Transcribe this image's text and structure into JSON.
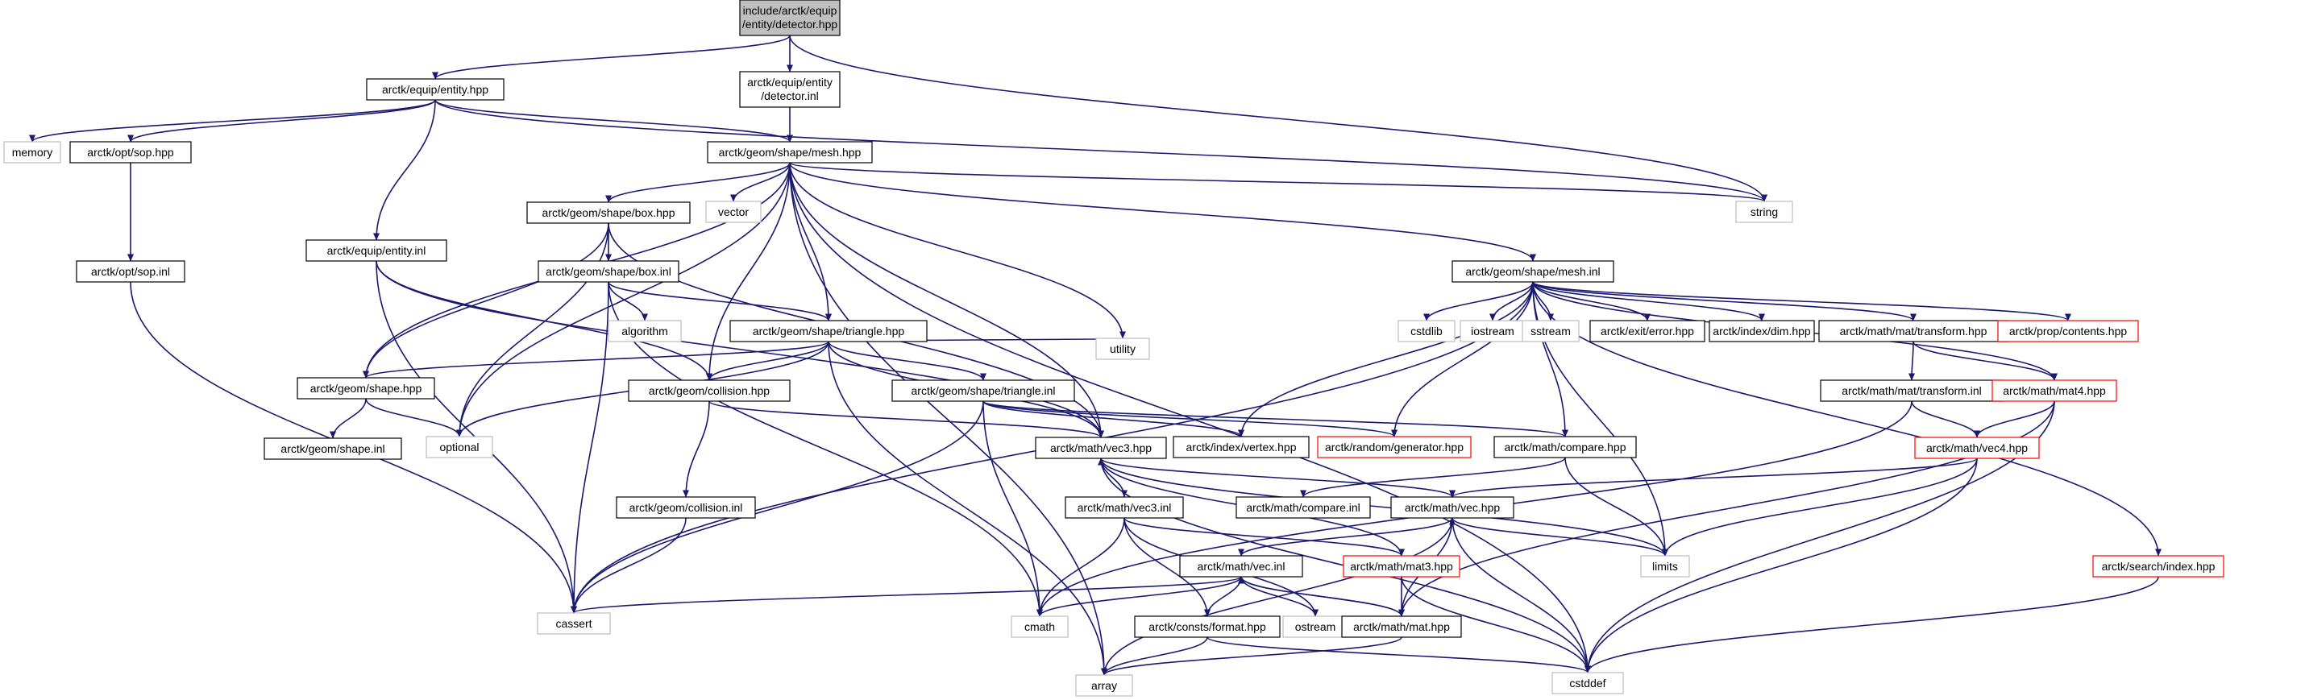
{
  "graph": {
    "root": "n0",
    "nodes": [
      {
        "id": "n0",
        "lines": [
          "include/arctk/equip",
          "/entity/detector.hpp"
        ],
        "style": "root"
      },
      {
        "id": "n1",
        "lines": [
          "arctk/equip/entity.hpp"
        ],
        "style": "normal"
      },
      {
        "id": "n2",
        "lines": [
          "arctk/equip/entity",
          "/detector.inl"
        ],
        "style": "normal"
      },
      {
        "id": "n3",
        "lines": [
          "string"
        ],
        "style": "external"
      },
      {
        "id": "n4",
        "lines": [
          "memory"
        ],
        "style": "external"
      },
      {
        "id": "n5",
        "lines": [
          "arctk/opt/sop.hpp"
        ],
        "style": "normal"
      },
      {
        "id": "n6",
        "lines": [
          "arctk/geom/shape/mesh.hpp"
        ],
        "style": "normal"
      },
      {
        "id": "n7",
        "lines": [
          "arctk/equip/entity.inl"
        ],
        "style": "normal"
      },
      {
        "id": "n8",
        "lines": [
          "arctk/opt/sop.inl"
        ],
        "style": "normal"
      },
      {
        "id": "n9",
        "lines": [
          "cassert"
        ],
        "style": "external"
      },
      {
        "id": "n10",
        "lines": [
          "arctk/geom/shape/box.hpp"
        ],
        "style": "normal"
      },
      {
        "id": "n11",
        "lines": [
          "vector"
        ],
        "style": "external"
      },
      {
        "id": "n12",
        "lines": [
          "arctk/geom/shape/mesh.inl"
        ],
        "style": "normal"
      },
      {
        "id": "n13",
        "lines": [
          "cstddef"
        ],
        "style": "external"
      },
      {
        "id": "n14",
        "lines": [
          "arctk/geom/shape/box.inl"
        ],
        "style": "normal"
      },
      {
        "id": "n15",
        "lines": [
          "algorithm"
        ],
        "style": "external"
      },
      {
        "id": "n16",
        "lines": [
          "arctk/geom/shape/triangle.hpp"
        ],
        "style": "normal"
      },
      {
        "id": "n17",
        "lines": [
          "utility"
        ],
        "style": "external"
      },
      {
        "id": "n18",
        "lines": [
          "arctk/geom/shape.hpp"
        ],
        "style": "normal"
      },
      {
        "id": "n19",
        "lines": [
          "arctk/geom/collision.hpp"
        ],
        "style": "normal"
      },
      {
        "id": "n20",
        "lines": [
          "arctk/geom/shape/triangle.inl"
        ],
        "style": "normal"
      },
      {
        "id": "n21",
        "lines": [
          "optional"
        ],
        "style": "external"
      },
      {
        "id": "n22",
        "lines": [
          "arctk/geom/shape.inl"
        ],
        "style": "normal"
      },
      {
        "id": "n23",
        "lines": [
          "arctk/math/vec3.hpp"
        ],
        "style": "normal"
      },
      {
        "id": "n24",
        "lines": [
          "arctk/index/vertex.hpp"
        ],
        "style": "normal"
      },
      {
        "id": "n25",
        "lines": [
          "arctk/random/generator.hpp"
        ],
        "style": "truncated"
      },
      {
        "id": "n26",
        "lines": [
          "arctk/math/compare.hpp"
        ],
        "style": "normal"
      },
      {
        "id": "n27",
        "lines": [
          "cstdlib"
        ],
        "style": "external"
      },
      {
        "id": "n28",
        "lines": [
          "iostream"
        ],
        "style": "external"
      },
      {
        "id": "n29",
        "lines": [
          "sstream"
        ],
        "style": "external"
      },
      {
        "id": "n30",
        "lines": [
          "arctk/exit/error.hpp"
        ],
        "style": "normal"
      },
      {
        "id": "n31",
        "lines": [
          "arctk/index/dim.hpp"
        ],
        "style": "normal"
      },
      {
        "id": "n32",
        "lines": [
          "arctk/math/mat/transform.hpp"
        ],
        "style": "normal"
      },
      {
        "id": "n33",
        "lines": [
          "arctk/prop/contents.hpp"
        ],
        "style": "truncated"
      },
      {
        "id": "n34",
        "lines": [
          "arctk/math/mat/transform.inl"
        ],
        "style": "normal"
      },
      {
        "id": "n35",
        "lines": [
          "arctk/math/mat4.hpp"
        ],
        "style": "truncated"
      },
      {
        "id": "n36",
        "lines": [
          "arctk/math/vec4.hpp"
        ],
        "style": "truncated"
      },
      {
        "id": "n37",
        "lines": [
          "arctk/geom/collision.inl"
        ],
        "style": "normal"
      },
      {
        "id": "n38",
        "lines": [
          "arctk/math/vec3.inl"
        ],
        "style": "normal"
      },
      {
        "id": "n39",
        "lines": [
          "arctk/math/compare.inl"
        ],
        "style": "normal"
      },
      {
        "id": "n40",
        "lines": [
          "arctk/math/vec.hpp"
        ],
        "style": "normal"
      },
      {
        "id": "n41",
        "lines": [
          "limits"
        ],
        "style": "external"
      },
      {
        "id": "n42",
        "lines": [
          "arctk/math/vec.inl"
        ],
        "style": "normal"
      },
      {
        "id": "n43",
        "lines": [
          "arctk/math/mat3.hpp"
        ],
        "style": "truncated"
      },
      {
        "id": "n44",
        "lines": [
          "arctk/search/index.hpp"
        ],
        "style": "truncated"
      },
      {
        "id": "n45",
        "lines": [
          "cmath"
        ],
        "style": "external"
      },
      {
        "id": "n46",
        "lines": [
          "ostream"
        ],
        "style": "external"
      },
      {
        "id": "n47",
        "lines": [
          "arctk/consts/format.hpp"
        ],
        "style": "normal"
      },
      {
        "id": "n48",
        "lines": [
          "arctk/math/mat.hpp"
        ],
        "style": "normal"
      },
      {
        "id": "n49",
        "lines": [
          "array"
        ],
        "style": "external"
      }
    ],
    "edges": [
      [
        "n0",
        "n1"
      ],
      [
        "n0",
        "n2"
      ],
      [
        "n0",
        "n3"
      ],
      [
        "n1",
        "n4"
      ],
      [
        "n1",
        "n5"
      ],
      [
        "n1",
        "n6"
      ],
      [
        "n1",
        "n7"
      ],
      [
        "n1",
        "n3"
      ],
      [
        "n2",
        "n6"
      ],
      [
        "n5",
        "n8"
      ],
      [
        "n8",
        "n9"
      ],
      [
        "n6",
        "n10"
      ],
      [
        "n6",
        "n11"
      ],
      [
        "n6",
        "n12"
      ],
      [
        "n6",
        "n3"
      ],
      [
        "n6",
        "n13"
      ],
      [
        "n6",
        "n16"
      ],
      [
        "n6",
        "n18"
      ],
      [
        "n6",
        "n19"
      ],
      [
        "n6",
        "n17"
      ],
      [
        "n6",
        "n23"
      ],
      [
        "n6",
        "n21"
      ],
      [
        "n6",
        "n49"
      ],
      [
        "n10",
        "n14"
      ],
      [
        "n10",
        "n18"
      ],
      [
        "n10",
        "n21"
      ],
      [
        "n10",
        "n23"
      ],
      [
        "n14",
        "n15"
      ],
      [
        "n14",
        "n16"
      ],
      [
        "n14",
        "n9"
      ],
      [
        "n14",
        "n45"
      ],
      [
        "n16",
        "n18"
      ],
      [
        "n16",
        "n19"
      ],
      [
        "n16",
        "n20"
      ],
      [
        "n16",
        "n17"
      ],
      [
        "n16",
        "n23"
      ],
      [
        "n16",
        "n21"
      ],
      [
        "n16",
        "n49"
      ],
      [
        "n7",
        "n19"
      ],
      [
        "n7",
        "n23"
      ],
      [
        "n7",
        "n9"
      ],
      [
        "n18",
        "n22"
      ],
      [
        "n18",
        "n21"
      ],
      [
        "n19",
        "n37"
      ],
      [
        "n19",
        "n23"
      ],
      [
        "n37",
        "n9"
      ],
      [
        "n20",
        "n24"
      ],
      [
        "n20",
        "n25"
      ],
      [
        "n20",
        "n26"
      ],
      [
        "n20",
        "n45"
      ],
      [
        "n20",
        "n9"
      ],
      [
        "n12",
        "n9"
      ],
      [
        "n12",
        "n27"
      ],
      [
        "n12",
        "n28"
      ],
      [
        "n12",
        "n29"
      ],
      [
        "n12",
        "n30"
      ],
      [
        "n12",
        "n31"
      ],
      [
        "n12",
        "n32"
      ],
      [
        "n12",
        "n33"
      ],
      [
        "n12",
        "n35"
      ],
      [
        "n12",
        "n44"
      ],
      [
        "n12",
        "n24"
      ],
      [
        "n12",
        "n25"
      ],
      [
        "n12",
        "n26"
      ],
      [
        "n12",
        "n41"
      ],
      [
        "n32",
        "n34"
      ],
      [
        "n32",
        "n35"
      ],
      [
        "n34",
        "n36"
      ],
      [
        "n34",
        "n45"
      ],
      [
        "n35",
        "n36"
      ],
      [
        "n35",
        "n48"
      ],
      [
        "n35",
        "n13"
      ],
      [
        "n36",
        "n40"
      ],
      [
        "n36",
        "n41"
      ],
      [
        "n36",
        "n13"
      ],
      [
        "n26",
        "n39"
      ],
      [
        "n26",
        "n41"
      ],
      [
        "n23",
        "n38"
      ],
      [
        "n23",
        "n40"
      ],
      [
        "n23",
        "n41"
      ],
      [
        "n23",
        "n13"
      ],
      [
        "n38",
        "n45"
      ],
      [
        "n38",
        "n46"
      ],
      [
        "n38",
        "n47"
      ],
      [
        "n38",
        "n43"
      ],
      [
        "n40",
        "n42"
      ],
      [
        "n40",
        "n41"
      ],
      [
        "n40",
        "n13"
      ],
      [
        "n40",
        "n49"
      ],
      [
        "n42",
        "n9"
      ],
      [
        "n42",
        "n45"
      ],
      [
        "n42",
        "n46"
      ],
      [
        "n42",
        "n47"
      ],
      [
        "n42",
        "n48"
      ],
      [
        "n43",
        "n48"
      ],
      [
        "n43",
        "n13"
      ],
      [
        "n43",
        "n23"
      ],
      [
        "n48",
        "n42"
      ],
      [
        "n48",
        "n40"
      ],
      [
        "n48",
        "n49"
      ],
      [
        "n47",
        "n49"
      ],
      [
        "n47",
        "n13"
      ],
      [
        "n44",
        "n13"
      ]
    ]
  },
  "colors": {
    "edge": "#191970",
    "root_fill": "#bfbfbf",
    "node_border": "#000000",
    "external_border": "#bfbfbf",
    "truncated_border": "#ff0000"
  }
}
